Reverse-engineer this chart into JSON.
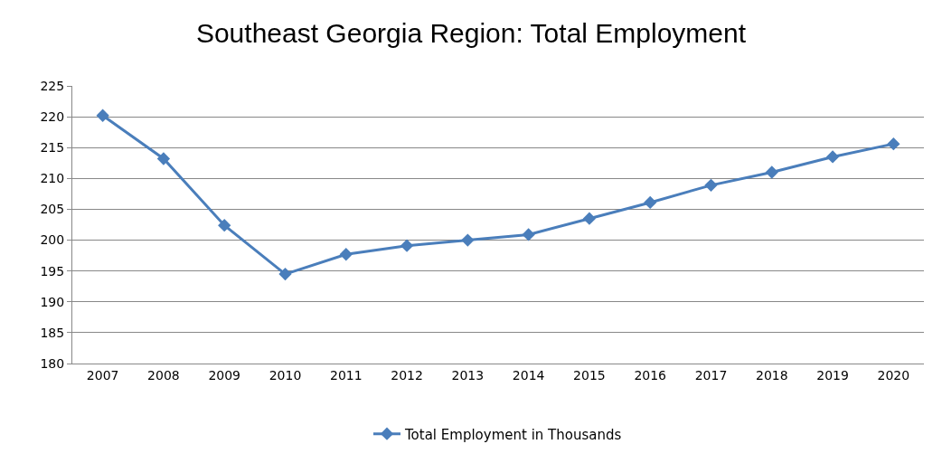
{
  "chart_data": {
    "type": "line",
    "title": "Southeast Georgia Region: Total Employment",
    "categories": [
      "2007",
      "2008",
      "2009",
      "2010",
      "2011",
      "2012",
      "2013",
      "2014",
      "2015",
      "2016",
      "2017",
      "2018",
      "2019",
      "2020"
    ],
    "series": [
      {
        "name": "Total Employment in Thousands",
        "color": "#4a7ebb",
        "values": [
          220.2,
          213.2,
          202.4,
          194.5,
          197.7,
          199.1,
          200.0,
          200.9,
          203.5,
          206.1,
          208.9,
          211.0,
          213.5,
          215.6
        ]
      }
    ],
    "ylim": [
      180,
      225
    ],
    "yticks": [
      180,
      185,
      190,
      195,
      200,
      205,
      210,
      215,
      220,
      225
    ],
    "grid": "y",
    "legend": "bottom",
    "marker": "diamond",
    "line_style": "solid"
  }
}
